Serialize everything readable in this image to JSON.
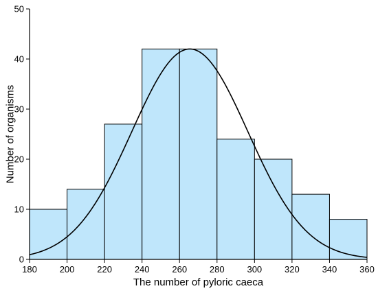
{
  "chart_data": {
    "type": "bar",
    "subtype": "histogram",
    "title": "",
    "xlabel": "The number of pyloric caeca",
    "ylabel": "Number of organisms",
    "xlim": [
      180,
      360
    ],
    "ylim": [
      0,
      50
    ],
    "x_ticks": [
      "180",
      "200",
      "220",
      "240",
      "260",
      "280",
      "300",
      "320",
      "340",
      "360"
    ],
    "y_ticks": [
      "0",
      "10",
      "20",
      "30",
      "40",
      "50"
    ],
    "bins": [
      {
        "start": 180,
        "end": 200,
        "count": 10
      },
      {
        "start": 200,
        "end": 220,
        "count": 14
      },
      {
        "start": 220,
        "end": 240,
        "count": 27
      },
      {
        "start": 240,
        "end": 260,
        "count": 42
      },
      {
        "start": 260,
        "end": 280,
        "count": 42
      },
      {
        "start": 280,
        "end": 300,
        "count": 24
      },
      {
        "start": 300,
        "end": 320,
        "count": 20
      },
      {
        "start": 320,
        "end": 340,
        "count": 13
      },
      {
        "start": 340,
        "end": 360,
        "count": 8
      }
    ],
    "fit_curve": {
      "type": "normal",
      "mean": 265.5,
      "sd": 31,
      "peak": 42
    },
    "bar_color": "#bfe6fb",
    "bar_edge_color": "#000000",
    "curve_color": "#000000",
    "grid": false,
    "legend": "none"
  }
}
